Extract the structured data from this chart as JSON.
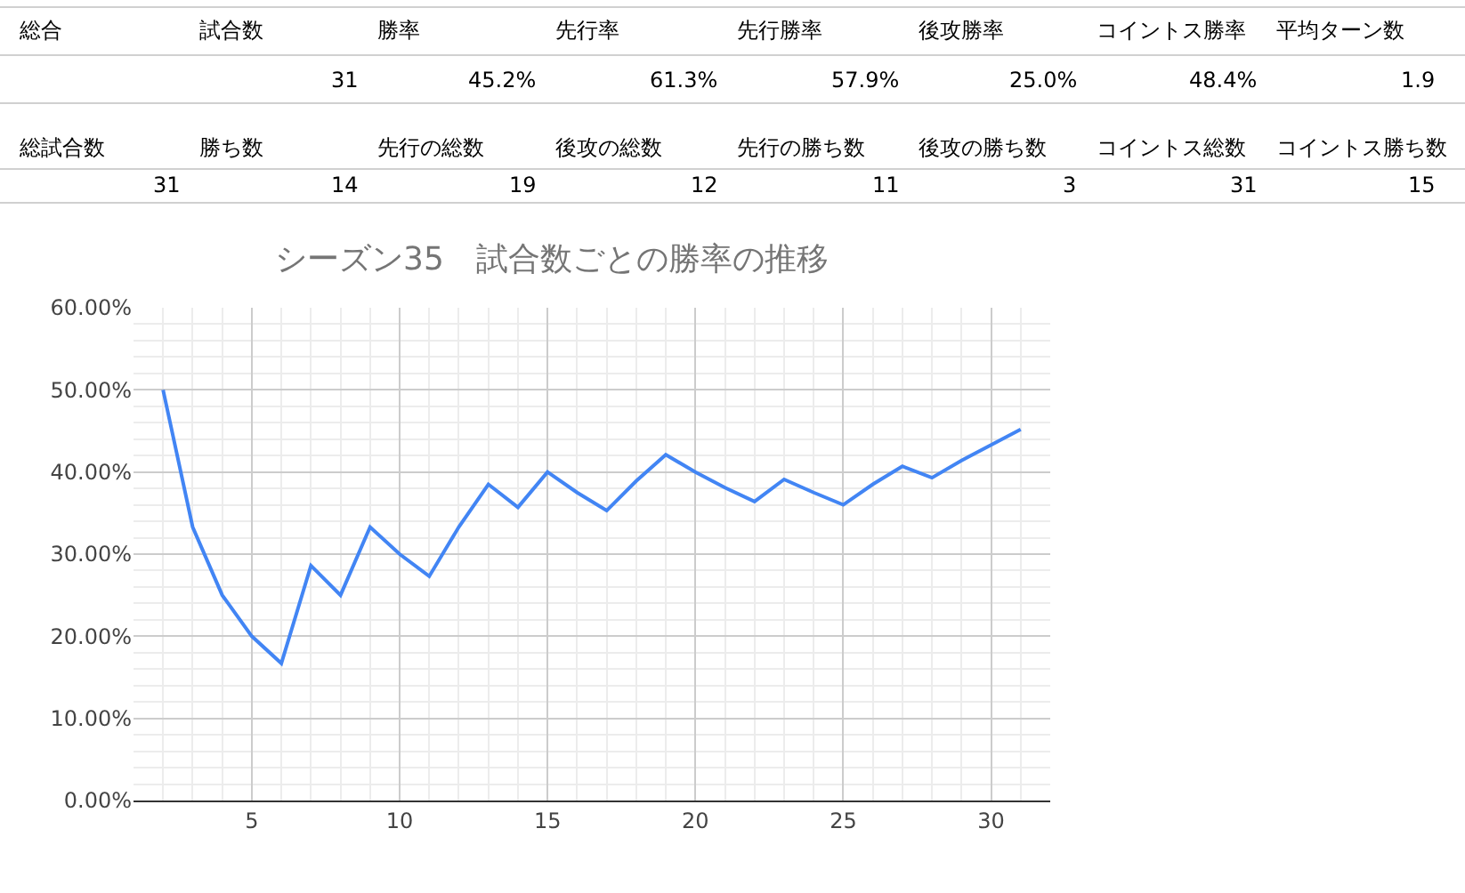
{
  "chart_data": {
    "type": "line",
    "title": "シーズン35　試合数ごとの勝率の推移",
    "x": [
      2,
      3,
      4,
      5,
      6,
      7,
      8,
      9,
      10,
      11,
      12,
      13,
      14,
      15,
      16,
      17,
      18,
      19,
      20,
      21,
      22,
      23,
      24,
      25,
      26,
      27,
      28,
      29,
      30,
      31
    ],
    "series": [
      {
        "color": "#4285f4",
        "values": [
          50.0,
          33.3,
          25.0,
          20.0,
          16.7,
          28.6,
          25.0,
          33.3,
          30.0,
          27.3,
          33.3,
          38.5,
          35.7,
          40.0,
          37.5,
          35.3,
          38.9,
          42.1,
          40.0,
          38.1,
          36.4,
          39.1,
          37.5,
          36.0,
          38.5,
          40.7,
          39.3,
          41.4,
          43.3,
          45.2
        ]
      }
    ],
    "xlim": [
      1,
      32
    ],
    "xticks": [
      5,
      10,
      15,
      20,
      25,
      30
    ],
    "ylim": [
      0,
      60
    ],
    "yticks": [
      {
        "value": 0,
        "label": "0.00%"
      },
      {
        "value": 10,
        "label": "10.00%"
      },
      {
        "value": 20,
        "label": "20.00%"
      },
      {
        "value": 30,
        "label": "30.00%"
      },
      {
        "value": 40,
        "label": "40.00%"
      },
      {
        "value": 50,
        "label": "50.00%"
      },
      {
        "value": 60,
        "label": "60.00%"
      }
    ],
    "grid": true,
    "marker": "none",
    "line_style": "solid",
    "annotations": [
      "総合",
      "試合数",
      "勝率",
      "先行率",
      "先行勝率",
      "後攻勝率",
      "コイントス勝率",
      "平均ターン数",
      "31",
      "45.2%",
      "61.3%",
      "57.9%",
      "25.0%",
      "48.4%",
      "1.9",
      "総試合数",
      "勝ち数",
      "先行の総数",
      "後攻の総数",
      "先行の勝ち数",
      "後攻の勝ち数",
      "コイントス総数",
      "コイントス勝ち数",
      "31",
      "14",
      "19",
      "12",
      "11",
      "3",
      "31",
      "15"
    ]
  }
}
